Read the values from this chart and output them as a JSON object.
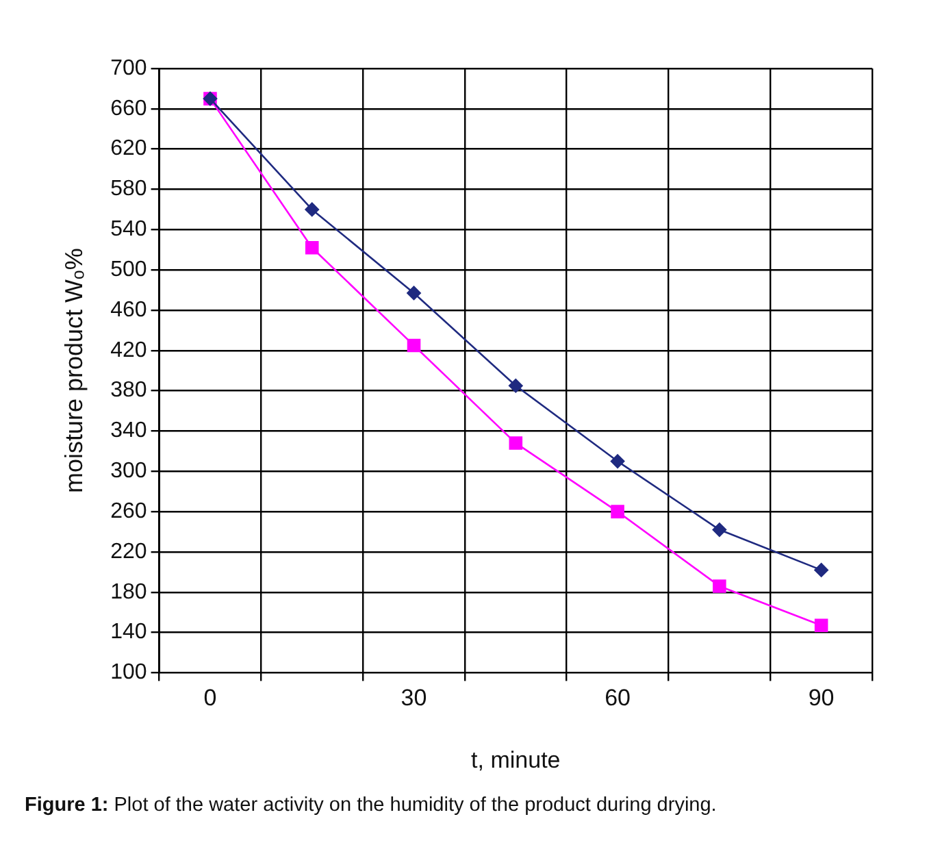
{
  "chart_data": {
    "type": "line",
    "xlabel": "t, minute",
    "ylabel": "moisture product Wₒ%",
    "categories": [
      "0",
      null,
      "30",
      null,
      "60",
      null,
      "90"
    ],
    "series": [
      {
        "color": "#1f2a80",
        "marker": "diamond",
        "values": [
          670,
          560,
          477,
          385,
          310,
          242,
          202
        ]
      },
      {
        "color": "#ff00ff",
        "marker": "square",
        "values": [
          670,
          522,
          425,
          328,
          260,
          186,
          147
        ]
      }
    ],
    "ylim": [
      100,
      700
    ],
    "yticks": [
      100,
      140,
      180,
      220,
      260,
      300,
      340,
      380,
      420,
      460,
      500,
      540,
      580,
      620,
      660,
      700
    ],
    "grid": true,
    "legend": false,
    "line_style": "solid",
    "annotations": [
      "Figure 1: Plot of the water activity on the humidity of the product during drying."
    ]
  }
}
